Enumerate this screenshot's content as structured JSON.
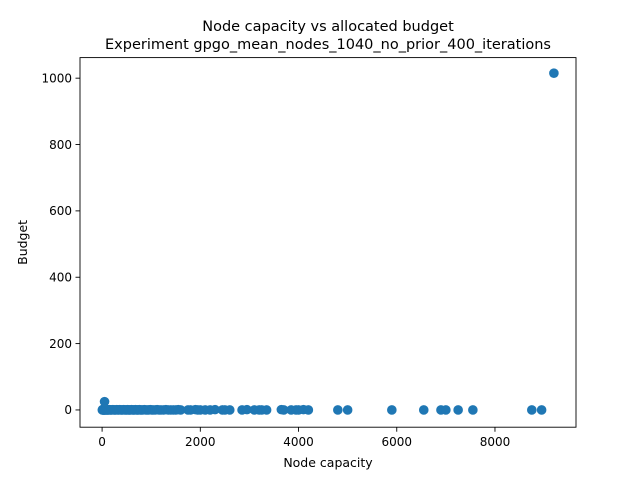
{
  "chart_data": {
    "type": "scatter",
    "title": "Node capacity vs allocated budget",
    "subtitle": "Experiment gpgo_mean_nodes_1040_no_prior_400_iterations",
    "xlabel": "Node capacity",
    "ylabel": "Budget",
    "xlim": [
      -450,
      9650
    ],
    "ylim": [
      -52,
      1062
    ],
    "xticks": [
      0,
      2000,
      4000,
      6000,
      8000
    ],
    "yticks": [
      0,
      200,
      400,
      600,
      800,
      1000
    ],
    "grid": false,
    "marker_color": "#1f77b4",
    "x": [
      5,
      10,
      15,
      20,
      25,
      30,
      35,
      40,
      45,
      50,
      60,
      70,
      80,
      90,
      100,
      110,
      120,
      135,
      150,
      165,
      180,
      200,
      220,
      240,
      260,
      280,
      300,
      320,
      340,
      360,
      380,
      400,
      420,
      440,
      460,
      480,
      500,
      520,
      540,
      560,
      580,
      600,
      620,
      640,
      660,
      680,
      700,
      720,
      740,
      760,
      780,
      800,
      830,
      860,
      890,
      920,
      950,
      980,
      1010,
      1040,
      1080,
      1120,
      1160,
      1200,
      1250,
      1300,
      1350,
      1400,
      1450,
      1500,
      1550,
      1600,
      1750,
      1800,
      1900,
      1950,
      2000,
      2100,
      2200,
      2300,
      2450,
      2500,
      2600,
      2850,
      2950,
      3100,
      3200,
      3250,
      3350,
      3650,
      3700,
      3850,
      3950,
      4000,
      4100,
      4200,
      4800,
      5000,
      5900,
      6550,
      6900,
      7000,
      7250,
      7550,
      8750,
      8950,
      9200,
      50
    ],
    "y": [
      0,
      1,
      0,
      2,
      0,
      1,
      0,
      0,
      1,
      0,
      0,
      1,
      0,
      0,
      1,
      0,
      0,
      0,
      1,
      0,
      0,
      0,
      1,
      0,
      0,
      0,
      1,
      0,
      0,
      1,
      0,
      0,
      0,
      1,
      0,
      0,
      0,
      1,
      0,
      0,
      0,
      1,
      0,
      0,
      0,
      1,
      0,
      0,
      0,
      1,
      0,
      0,
      0,
      1,
      0,
      0,
      0,
      1,
      0,
      0,
      0,
      1,
      0,
      0,
      0,
      1,
      0,
      0,
      0,
      0,
      1,
      0,
      0,
      0,
      1,
      0,
      0,
      0,
      0,
      1,
      0,
      0,
      0,
      0,
      1,
      0,
      0,
      0,
      0,
      1,
      0,
      0,
      0,
      0,
      1,
      0,
      0,
      0,
      0,
      0,
      0,
      0,
      0,
      0,
      0,
      0,
      1015,
      25
    ]
  }
}
